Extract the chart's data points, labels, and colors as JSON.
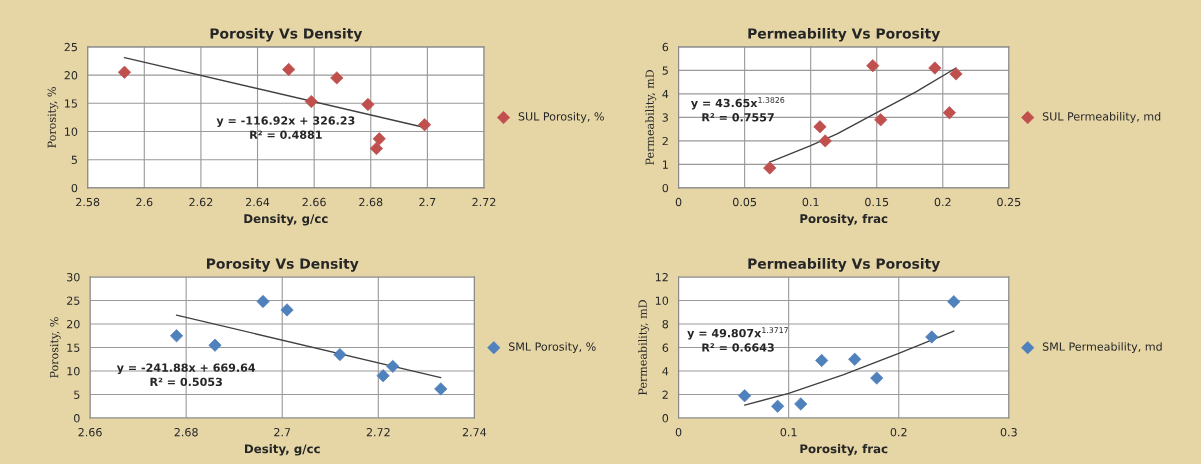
{
  "chart_data": [
    {
      "type": "scatter",
      "title": "Porosity Vs Density",
      "xlabel": "Density, g/cc",
      "ylabel": "Porosity, %",
      "xlim": [
        2.58,
        2.72
      ],
      "xticks": [
        2.58,
        2.6,
        2.62,
        2.64,
        2.66,
        2.68,
        2.7,
        2.72
      ],
      "ylim": [
        0,
        25
      ],
      "yticks": [
        0,
        5,
        10,
        15,
        20,
        25
      ],
      "grid": true,
      "legend": "right",
      "marker": "diamond",
      "series": [
        {
          "name": "SUL Porosity, %",
          "color": "#c0504d",
          "x": [
            2.593,
            2.651,
            2.659,
            2.668,
            2.679,
            2.699,
            2.683,
            2.682
          ],
          "values": [
            20.5,
            21,
            15.3,
            19.5,
            14.8,
            11.2,
            8.7,
            7
          ]
        },
        {
          "type": "line",
          "color": "#404040",
          "marker": "none",
          "x": [
            2.593,
            2.699
          ],
          "values": [
            23.1,
            10.7
          ]
        }
      ],
      "annotations": [
        "y = -116.92x + 326.23\nR² = 0.4881"
      ]
    },
    {
      "type": "scatter",
      "title": "Permeability Vs Porosity",
      "xlabel": "Porosity, frac",
      "ylabel": "Permeability, mD",
      "xlim": [
        0,
        0.25
      ],
      "xticks": [
        0,
        0.05,
        0.1,
        0.15,
        0.2,
        0.25
      ],
      "ylim": [
        0,
        6
      ],
      "yticks": [
        0,
        1,
        2,
        3,
        4,
        5,
        6
      ],
      "grid": true,
      "legend": "right",
      "marker": "diamond",
      "series": [
        {
          "name": "SUL Permeability, md",
          "color": "#c0504d",
          "x": [
            0.069,
            0.107,
            0.111,
            0.147,
            0.153,
            0.194,
            0.205,
            0.21
          ],
          "values": [
            0.85,
            2.6,
            2.0,
            5.2,
            2.9,
            5.1,
            3.2,
            4.85
          ]
        },
        {
          "type": "line",
          "color": "#404040",
          "marker": "none",
          "x": [
            0.069,
            0.1,
            0.12,
            0.15,
            0.18,
            0.21
          ],
          "values": [
            1.1,
            1.8,
            2.3,
            3.2,
            4.1,
            5.1
          ]
        }
      ],
      "annotations": [
        "y = 43.65x$^{1.3826}$\nR² = 0.7557"
      ]
    },
    {
      "type": "scatter",
      "title": "Porosity Vs Density",
      "xlabel": "Desity, g/cc",
      "ylabel": "Porosity, %",
      "xlim": [
        2.66,
        2.74
      ],
      "xticks": [
        2.66,
        2.68,
        2.7,
        2.72,
        2.74
      ],
      "ylim": [
        0,
        30
      ],
      "yticks": [
        0,
        5,
        10,
        15,
        20,
        25,
        30
      ],
      "grid": true,
      "legend": "right",
      "marker": "diamond",
      "series": [
        {
          "name": "SML Porosity, %",
          "color": "#4f81bd",
          "x": [
            2.678,
            2.686,
            2.696,
            2.701,
            2.712,
            2.721,
            2.723,
            2.733
          ],
          "values": [
            17.5,
            15.5,
            24.8,
            23,
            13.5,
            9,
            11,
            6.2
          ]
        },
        {
          "type": "line",
          "color": "#404040",
          "marker": "none",
          "x": [
            2.678,
            2.733
          ],
          "values": [
            21.9,
            8.6
          ]
        }
      ],
      "annotations": [
        "y = -241.88x + 669.64\nR² = 0.5053"
      ]
    },
    {
      "type": "scatter",
      "title": "Permeability Vs Porosity",
      "xlabel": "Porosity, frac",
      "ylabel": "Permeability, mD",
      "xlim": [
        0,
        0.3
      ],
      "xticks": [
        0,
        0.1,
        0.2,
        0.3
      ],
      "ylim": [
        0,
        12
      ],
      "yticks": [
        0,
        2,
        4,
        6,
        8,
        10,
        12
      ],
      "grid": true,
      "legend": "right",
      "marker": "diamond",
      "series": [
        {
          "name": "SML Permeability, md",
          "color": "#4f81bd",
          "x": [
            0.06,
            0.09,
            0.111,
            0.13,
            0.16,
            0.18,
            0.23,
            0.25
          ],
          "values": [
            1.9,
            1.0,
            1.2,
            4.9,
            5.0,
            3.4,
            6.9,
            9.9
          ]
        },
        {
          "type": "line",
          "color": "#404040",
          "marker": "none",
          "x": [
            0.06,
            0.1,
            0.15,
            0.2,
            0.25
          ],
          "values": [
            1.1,
            2.1,
            3.7,
            5.5,
            7.4
          ]
        }
      ],
      "annotations": [
        "y = 49.807x$^{1.3717}$\nR² = 0.6643"
      ]
    }
  ]
}
